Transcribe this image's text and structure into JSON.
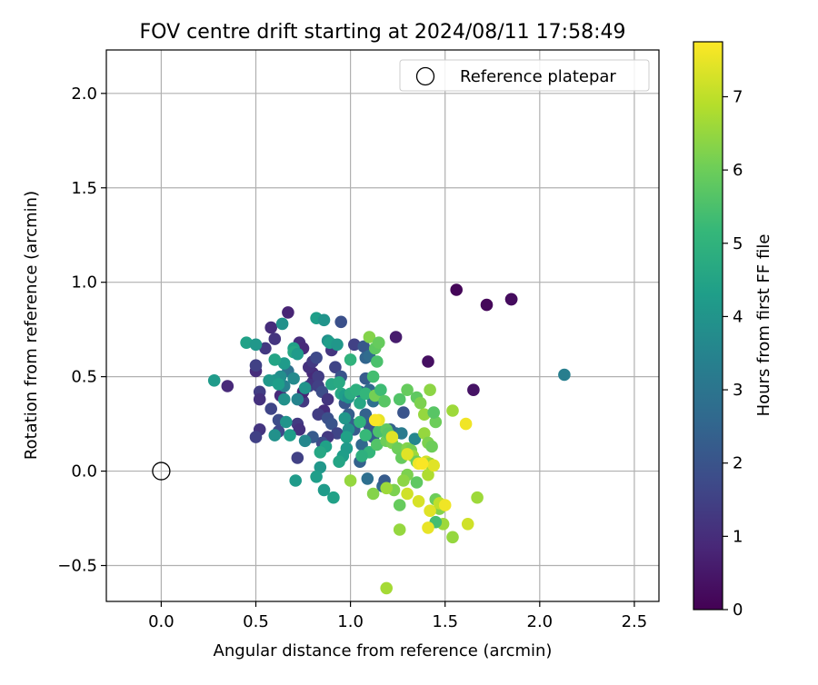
{
  "chart_data": {
    "type": "scatter",
    "title": "FOV centre drift starting at 2024/08/11 17:58:49",
    "xlabel": "Angular distance from reference (arcmin)",
    "ylabel": "Rotation from reference (arcmin)",
    "xlim": [
      -0.29,
      2.63
    ],
    "ylim": [
      -0.69,
      2.23
    ],
    "x_ticks": [
      0.0,
      0.5,
      1.0,
      1.5,
      2.0,
      2.5
    ],
    "x_tick_labels": [
      "0.0",
      "0.5",
      "1.0",
      "1.5",
      "2.0",
      "2.5"
    ],
    "y_ticks": [
      -0.5,
      0.0,
      0.5,
      1.0,
      1.5,
      2.0
    ],
    "y_tick_labels": [
      "−0.5",
      "0.0",
      "0.5",
      "1.0",
      "1.5",
      "2.0"
    ],
    "grid": true,
    "legend": {
      "placement": "top-right",
      "entries": [
        {
          "label": "Reference platepar",
          "marker": "open-circle"
        }
      ]
    },
    "reference_point": {
      "name": "Reference platepar",
      "x": 0.0,
      "y": 0.0
    },
    "colorbar": {
      "label": "Hours from first FF file",
      "colormap": "viridis",
      "range": [
        0,
        7.75
      ],
      "ticks": [
        0,
        1,
        2,
        3,
        4,
        5,
        6,
        7
      ],
      "tick_labels": [
        "0",
        "1",
        "2",
        "3",
        "4",
        "5",
        "6",
        "7"
      ]
    },
    "series": [
      {
        "marker": "filled-circle",
        "points": [
          [
            1.56,
            0.96,
            0.1
          ],
          [
            1.72,
            0.88,
            0.15
          ],
          [
            1.85,
            0.91,
            0.2
          ],
          [
            1.85,
            0.91,
            0.25
          ],
          [
            1.41,
            0.58,
            0.3
          ],
          [
            1.65,
            0.43,
            0.4
          ],
          [
            1.24,
            0.71,
            0.6
          ],
          [
            0.67,
            0.84,
            0.8
          ],
          [
            0.58,
            0.76,
            1.0
          ],
          [
            0.6,
            0.7,
            1.2
          ],
          [
            0.55,
            0.65,
            1.3
          ],
          [
            0.5,
            0.53,
            1.0
          ],
          [
            0.35,
            0.45,
            0.9
          ],
          [
            0.52,
            0.42,
            1.4
          ],
          [
            0.5,
            0.56,
            1.5
          ],
          [
            0.52,
            0.38,
            1.1
          ],
          [
            0.63,
            0.4,
            0.9
          ],
          [
            0.58,
            0.33,
            1.6
          ],
          [
            0.62,
            0.27,
            1.8
          ],
          [
            0.62,
            0.21,
            1.7
          ],
          [
            0.52,
            0.22,
            1.2
          ],
          [
            0.5,
            0.18,
            1.5
          ],
          [
            0.72,
            0.25,
            1.3
          ],
          [
            0.73,
            0.22,
            1.1
          ],
          [
            0.75,
            0.37,
            1.3
          ],
          [
            0.75,
            0.42,
            0.8
          ],
          [
            0.78,
            0.45,
            1.6
          ],
          [
            0.8,
            0.47,
            1.2
          ],
          [
            0.8,
            0.52,
            0.9
          ],
          [
            0.83,
            0.5,
            1.4
          ],
          [
            0.73,
            0.68,
            1.0
          ],
          [
            0.75,
            0.65,
            0.9
          ],
          [
            0.78,
            0.55,
            1.1
          ],
          [
            0.8,
            0.58,
            1.3
          ],
          [
            0.82,
            0.6,
            1.7
          ],
          [
            0.83,
            0.45,
            1.5
          ],
          [
            0.85,
            0.42,
            1.8
          ],
          [
            0.88,
            0.38,
            1.2
          ],
          [
            0.86,
            0.32,
            1.0
          ],
          [
            0.83,
            0.3,
            1.4
          ],
          [
            0.88,
            0.28,
            1.9
          ],
          [
            0.9,
            0.25,
            2.0
          ],
          [
            0.93,
            0.2,
            1.6
          ],
          [
            0.88,
            0.18,
            1.3
          ],
          [
            0.85,
            0.15,
            1.8
          ],
          [
            0.8,
            0.18,
            2.2
          ],
          [
            0.72,
            0.07,
            1.5
          ],
          [
            0.9,
            0.64,
            1.2
          ],
          [
            0.92,
            0.55,
            1.6
          ],
          [
            0.95,
            0.5,
            2.0
          ],
          [
            0.97,
            0.36,
            2.1
          ],
          [
            0.99,
            0.3,
            2.3
          ],
          [
            1.0,
            0.25,
            2.4
          ],
          [
            1.02,
            0.22,
            2.2
          ],
          [
            1.02,
            0.67,
            1.5
          ],
          [
            0.95,
            0.79,
            1.9
          ],
          [
            1.07,
            0.66,
            2.1
          ],
          [
            1.08,
            0.6,
            2.5
          ],
          [
            1.1,
            0.61,
            2.7
          ],
          [
            1.08,
            0.49,
            2.2
          ],
          [
            1.1,
            0.43,
            2.6
          ],
          [
            1.12,
            0.37,
            2.8
          ],
          [
            1.05,
            0.42,
            2.5
          ],
          [
            1.08,
            0.3,
            2.4
          ],
          [
            1.1,
            0.24,
            2.0
          ],
          [
            1.12,
            0.18,
            2.3
          ],
          [
            1.05,
            0.05,
            2.4
          ],
          [
            1.06,
            0.14,
            2.6
          ],
          [
            1.09,
            -0.04,
            2.8
          ],
          [
            1.17,
            -0.08,
            2.6
          ],
          [
            1.18,
            -0.05,
            2.2
          ],
          [
            1.21,
            0.22,
            2.4
          ],
          [
            1.24,
            0.2,
            2.6
          ],
          [
            1.27,
            0.2,
            3.2
          ],
          [
            1.28,
            0.31,
            2.0
          ],
          [
            1.34,
            0.17,
            3.6
          ],
          [
            2.13,
            0.51,
            3.3
          ],
          [
            0.67,
            0.53,
            2.9
          ],
          [
            0.65,
            0.45,
            3.4
          ],
          [
            0.63,
            0.5,
            3.8
          ],
          [
            0.6,
            0.48,
            4.0
          ],
          [
            0.57,
            0.48,
            4.1
          ],
          [
            0.62,
            0.46,
            4.3
          ],
          [
            0.7,
            0.49,
            3.7
          ],
          [
            0.72,
            0.38,
            3.5
          ],
          [
            0.65,
            0.38,
            3.9
          ],
          [
            0.66,
            0.26,
            4.0
          ],
          [
            0.68,
            0.19,
            4.3
          ],
          [
            0.6,
            0.19,
            3.9
          ],
          [
            0.76,
            0.16,
            3.6
          ],
          [
            0.28,
            0.48,
            4.2
          ],
          [
            0.45,
            0.68,
            4.4
          ],
          [
            0.5,
            0.67,
            4.1
          ],
          [
            0.64,
            0.78,
            3.9
          ],
          [
            0.65,
            0.57,
            4.2
          ],
          [
            0.6,
            0.59,
            4.5
          ],
          [
            0.7,
            0.65,
            4.4
          ],
          [
            0.7,
            0.63,
            4.6
          ],
          [
            0.72,
            0.62,
            4.2
          ],
          [
            0.76,
            0.44,
            4.0
          ],
          [
            0.82,
            0.81,
            4.3
          ],
          [
            0.86,
            0.8,
            4.0
          ],
          [
            0.88,
            0.69,
            3.9
          ],
          [
            0.89,
            0.68,
            4.3
          ],
          [
            0.93,
            0.67,
            4.1
          ],
          [
            0.95,
            0.41,
            4.6
          ],
          [
            0.97,
            0.4,
            4.3
          ],
          [
            0.99,
            0.39,
            4.0
          ],
          [
            0.97,
            0.28,
            4.1
          ],
          [
            0.99,
            0.22,
            3.8
          ],
          [
            0.98,
            0.18,
            4.4
          ],
          [
            0.98,
            0.12,
            4.2
          ],
          [
            0.96,
            0.08,
            4.3
          ],
          [
            0.94,
            0.05,
            4.5
          ],
          [
            0.87,
            0.13,
            4.4
          ],
          [
            0.84,
            0.1,
            4.6
          ],
          [
            0.84,
            0.02,
            4.1
          ],
          [
            0.82,
            -0.03,
            4.3
          ],
          [
            0.86,
            -0.1,
            4.2
          ],
          [
            0.91,
            -0.14,
            4.4
          ],
          [
            0.71,
            -0.05,
            4.2
          ],
          [
            0.9,
            0.46,
            4.6
          ],
          [
            0.94,
            0.47,
            4.7
          ],
          [
            1.0,
            0.41,
            4.8
          ],
          [
            1.03,
            0.43,
            4.9
          ],
          [
            1.05,
            0.36,
            4.6
          ],
          [
            1.08,
            0.41,
            5.1
          ],
          [
            1.0,
            0.59,
            5.0
          ],
          [
            1.05,
            0.26,
            5.0
          ],
          [
            1.08,
            0.19,
            5.2
          ],
          [
            1.1,
            0.1,
            5.1
          ],
          [
            1.06,
            0.08,
            4.9
          ],
          [
            1.12,
            0.5,
            5.4
          ],
          [
            1.1,
            0.71,
            6.3
          ],
          [
            1.13,
            0.65,
            5.8
          ],
          [
            1.15,
            0.68,
            5.9
          ],
          [
            1.14,
            0.58,
            5.5
          ],
          [
            1.13,
            0.4,
            6.1
          ],
          [
            1.16,
            0.43,
            5.3
          ],
          [
            1.18,
            0.37,
            5.7
          ],
          [
            1.15,
            0.21,
            5.5
          ],
          [
            1.14,
            0.14,
            5.6
          ],
          [
            1.19,
            0.22,
            5.8
          ],
          [
            1.19,
            0.16,
            6.0
          ],
          [
            1.2,
            0.2,
            5.7
          ],
          [
            1.22,
            0.15,
            6.2
          ],
          [
            1.25,
            0.12,
            6.0
          ],
          [
            1.27,
            0.07,
            5.9
          ],
          [
            1.3,
            0.12,
            6.3
          ],
          [
            1.32,
            0.11,
            6.1
          ],
          [
            1.33,
            0.08,
            6.6
          ],
          [
            1.26,
            0.38,
            5.6
          ],
          [
            1.3,
            0.43,
            5.9
          ],
          [
            1.35,
            0.39,
            5.8
          ],
          [
            1.37,
            0.36,
            6.2
          ],
          [
            1.39,
            0.3,
            6.5
          ],
          [
            1.45,
            0.26,
            6.0
          ],
          [
            1.44,
            0.31,
            5.7
          ],
          [
            1.42,
            0.43,
            6.4
          ],
          [
            1.54,
            0.32,
            6.6
          ],
          [
            1.35,
            0.05,
            6.0
          ],
          [
            1.35,
            -0.06,
            5.8
          ],
          [
            1.3,
            -0.02,
            6.2
          ],
          [
            1.28,
            -0.05,
            6.4
          ],
          [
            1.26,
            -0.18,
            5.9
          ],
          [
            1.23,
            -0.1,
            6.2
          ],
          [
            1.19,
            -0.09,
            6.6
          ],
          [
            1.12,
            -0.12,
            6.3
          ],
          [
            1.0,
            -0.05,
            6.5
          ],
          [
            1.39,
            0.2,
            6.5
          ],
          [
            1.41,
            0.15,
            6.2
          ],
          [
            1.43,
            0.13,
            6.0
          ],
          [
            1.41,
            -0.02,
            6.8
          ],
          [
            1.4,
            0.05,
            7.2
          ],
          [
            1.42,
            0.04,
            6.6
          ],
          [
            1.44,
            0.03,
            7.4
          ],
          [
            1.45,
            -0.15,
            6.0
          ],
          [
            1.47,
            -0.2,
            6.3
          ],
          [
            1.49,
            -0.28,
            6.6
          ],
          [
            1.45,
            -0.27,
            5.4
          ],
          [
            1.3,
            -0.12,
            7.2
          ],
          [
            1.36,
            -0.16,
            7.3
          ],
          [
            1.42,
            -0.21,
            7.4
          ],
          [
            1.47,
            -0.17,
            7.0
          ],
          [
            1.5,
            -0.18,
            7.6
          ],
          [
            1.41,
            -0.3,
            7.5
          ],
          [
            1.54,
            -0.35,
            6.5
          ],
          [
            1.62,
            -0.28,
            7.2
          ],
          [
            1.67,
            -0.14,
            6.6
          ],
          [
            1.61,
            0.25,
            7.6
          ],
          [
            1.26,
            -0.31,
            6.5
          ],
          [
            1.19,
            -0.62,
            6.7
          ],
          [
            1.36,
            0.04,
            7.6
          ],
          [
            1.3,
            0.09,
            7.4
          ],
          [
            1.38,
            0.04,
            7.7
          ],
          [
            1.22,
            0.18,
            7.4
          ],
          [
            1.15,
            0.27,
            7.5
          ],
          [
            1.13,
            0.27,
            7.7
          ]
        ]
      }
    ]
  }
}
